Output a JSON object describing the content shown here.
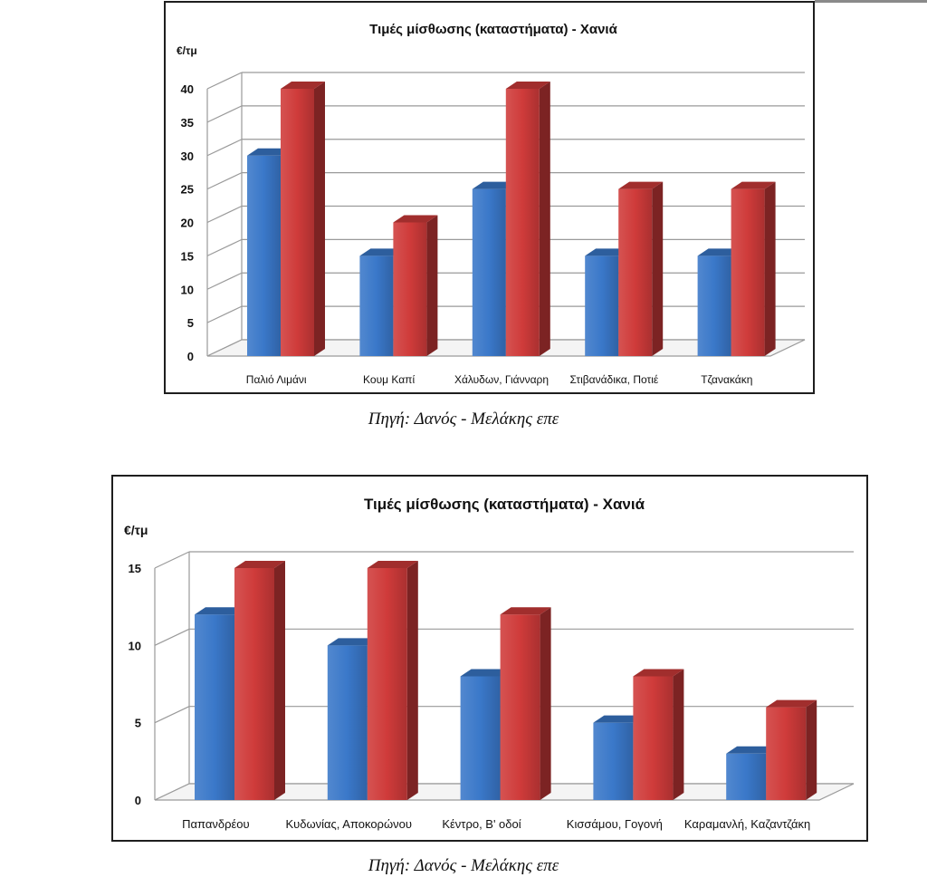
{
  "captions": {
    "chart1": "Πηγή: Δανός - Μελάκης επε",
    "chart2": "Πηγή: Δανός - Μελάκης επε"
  },
  "colors": {
    "series1": "#3a78c9",
    "series2": "#cf3b3a",
    "grid": "#9a9a9a"
  },
  "chart_data": [
    {
      "type": "bar",
      "title": "Τιμές μίσθωσης (καταστήματα) - Χανιά",
      "unit_label": "€/τμ",
      "categories": [
        "Παλιό Λιμάνι",
        "Κουμ Καπί",
        "Χάλυδων, Γιάνναρη",
        "Στιβανάδικα, Ποτιέ",
        "Τζανακάκη"
      ],
      "series": [
        {
          "values": [
            30,
            15,
            25,
            15,
            15
          ]
        },
        {
          "values": [
            40,
            20,
            40,
            25,
            25
          ]
        }
      ],
      "ylim": [
        0,
        40
      ],
      "yticks": [
        0,
        5,
        10,
        15,
        20,
        25,
        30,
        35,
        40
      ],
      "grid": true,
      "style": "3d-clustered-column"
    },
    {
      "type": "bar",
      "title": "Τιμές μίσθωσης (καταστήματα) - Χανιά",
      "unit_label": "€/τμ",
      "categories": [
        "Παπανδρέου",
        "Κυδωνίας, Αποκορώνου",
        "Κέντρο, Β' οδοί",
        "Κισσάμου, Γογονή",
        "Καραμανλή, Καζαντζάκη"
      ],
      "series": [
        {
          "values": [
            12,
            10,
            8,
            5,
            3
          ]
        },
        {
          "values": [
            15,
            15,
            12,
            8,
            6
          ]
        }
      ],
      "ylim": [
        0,
        15
      ],
      "yticks": [
        0,
        5,
        10,
        15
      ],
      "grid": true,
      "style": "3d-clustered-column"
    }
  ]
}
